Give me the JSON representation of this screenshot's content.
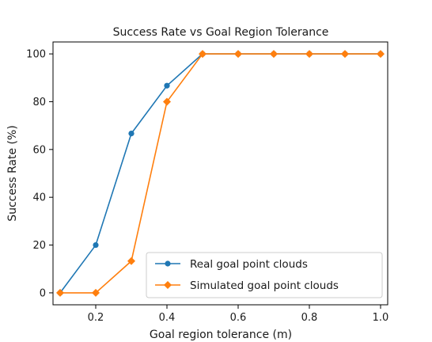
{
  "chart_data": {
    "type": "line",
    "title": "Success Rate vs Goal Region Tolerance",
    "xlabel": "Goal region tolerance (m)",
    "ylabel": "Success Rate (%)",
    "xlim": [
      0.08,
      1.02
    ],
    "ylim": [
      -5,
      105
    ],
    "xticks": [
      0.2,
      0.4,
      0.6,
      0.8,
      1.0
    ],
    "xtick_labels": [
      "0.2",
      "0.4",
      "0.6",
      "0.8",
      "1.0"
    ],
    "yticks": [
      0,
      20,
      40,
      60,
      80,
      100
    ],
    "ytick_labels": [
      "0",
      "20",
      "40",
      "60",
      "80",
      "100"
    ],
    "grid": false,
    "legend_position": "lower-right",
    "series": [
      {
        "name": "Real goal point clouds",
        "color": "#1f77b4",
        "marker": "circle",
        "x": [
          0.1,
          0.2,
          0.3,
          0.4,
          0.5,
          0.6,
          0.7,
          0.8,
          0.9,
          1.0
        ],
        "y": [
          0,
          20,
          66.7,
          86.7,
          100,
          100,
          100,
          100,
          100,
          100
        ]
      },
      {
        "name": "Simulated goal point clouds",
        "color": "#ff7f0e",
        "marker": "diamond",
        "x": [
          0.1,
          0.2,
          0.3,
          0.4,
          0.5,
          0.6,
          0.7,
          0.8,
          0.9,
          1.0
        ],
        "y": [
          0,
          0,
          13.3,
          80,
          100,
          100,
          100,
          100,
          100,
          100
        ]
      }
    ]
  }
}
